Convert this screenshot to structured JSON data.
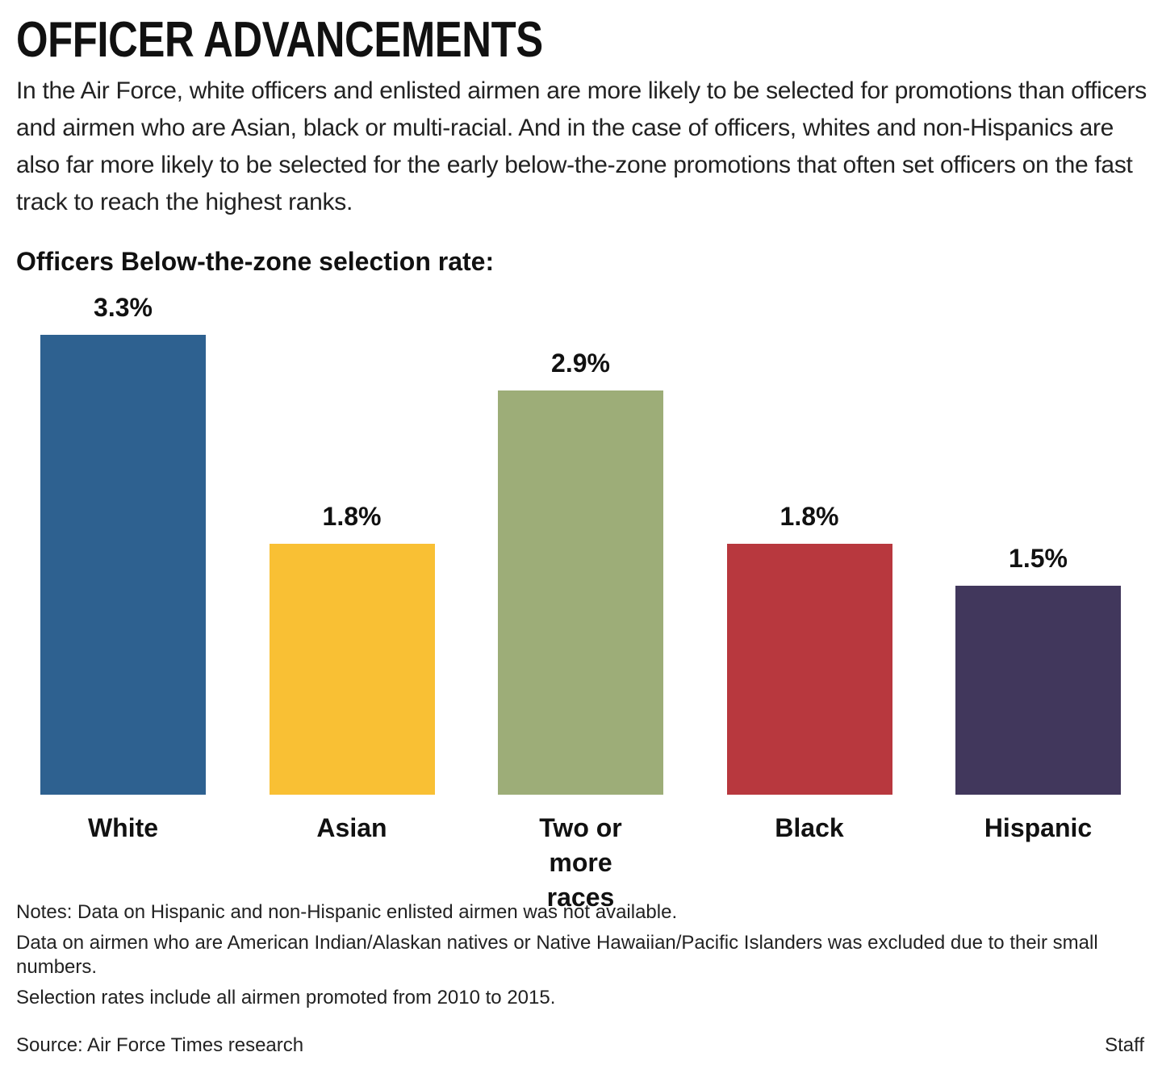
{
  "chart_data": {
    "type": "bar",
    "title": "OFFICER ADVANCEMENTS",
    "subtitle": "In the Air Force, white officers and enlisted airmen are more likely to be selected for promotions than officers and airmen who are Asian, black or multi-racial. And in the case of officers, whites and non-Hispanics are also far more likely to be selected for the early below-the-zone promotions that often set officers on the fast track to reach the highest ranks.",
    "chart_title": "Officers Below-the-zone selection rate:",
    "categories": [
      "White",
      "Asian",
      "Two or more races",
      "Black",
      "Hispanic"
    ],
    "values": [
      3.3,
      1.8,
      2.9,
      1.8,
      1.5
    ],
    "value_labels": [
      "3.3%",
      "1.8%",
      "2.9%",
      "1.8%",
      "1.5%"
    ],
    "colors": [
      "#2e6190",
      "#f9c034",
      "#9dad78",
      "#b8383e",
      "#41375c"
    ],
    "notes": [
      "Notes: Data on Hispanic and non-Hispanic enlisted airmen was not available.",
      "Data on airmen who are American Indian/Alaskan natives or Native Hawaiian/Pacific Islanders was excluded due to their small numbers.",
      "Selection rates include all airmen promoted from 2010 to 2015."
    ],
    "source": "Source: Air Force Times research",
    "credit": "Staff"
  }
}
